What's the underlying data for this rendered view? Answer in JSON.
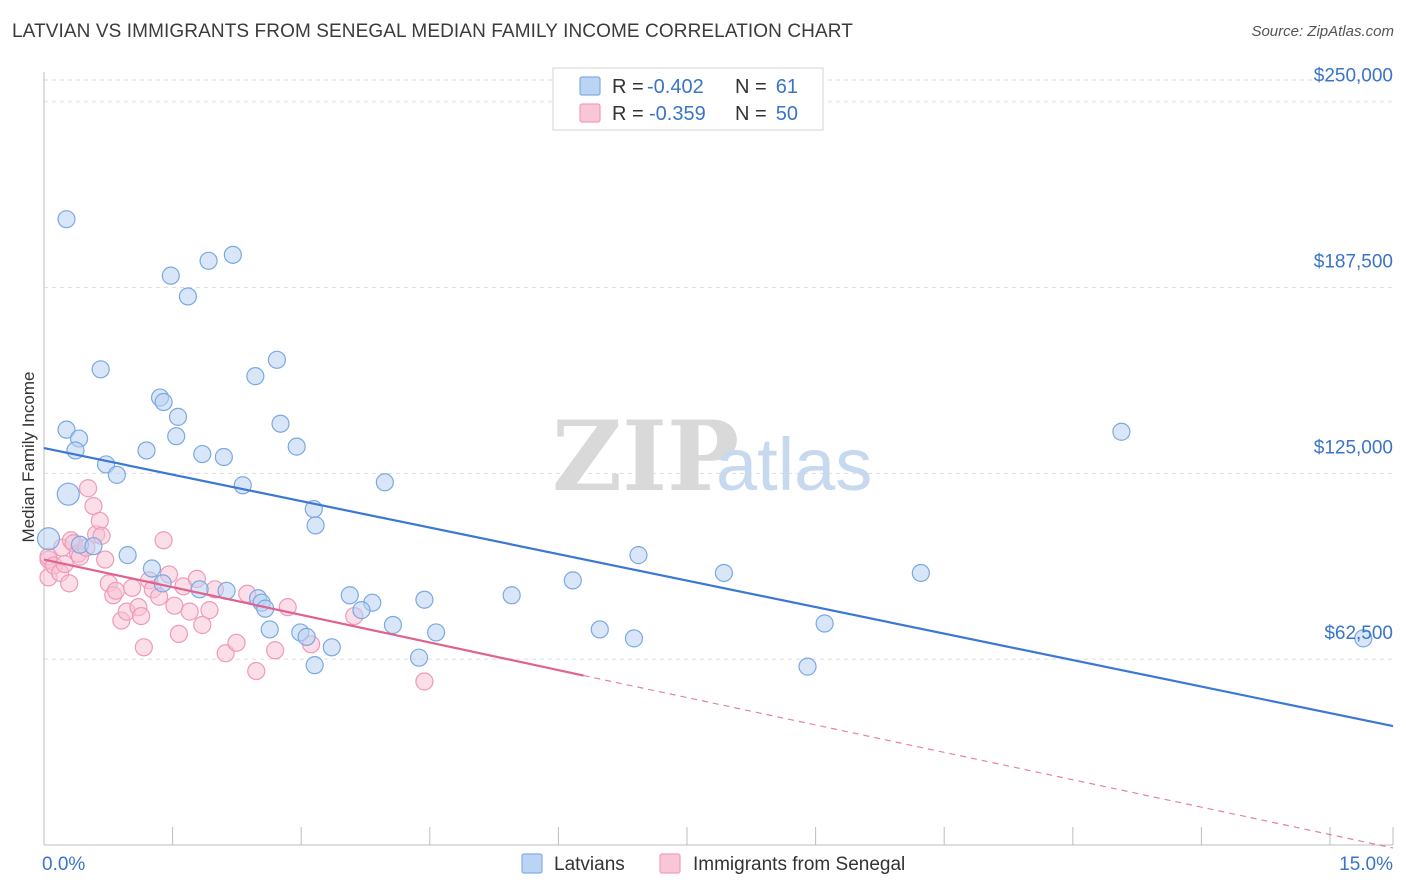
{
  "header": {
    "title": "LATVIAN VS IMMIGRANTS FROM SENEGAL MEDIAN FAMILY INCOME CORRELATION CHART",
    "source": "Source: ZipAtlas.com"
  },
  "watermark": {
    "zip": "ZIP",
    "atlas": "atlas"
  },
  "stats": [
    {
      "r_label": "R =",
      "r_value": "-0.402",
      "n_label": "N =",
      "n_value": "61",
      "color": "#7eaee5",
      "fill": "#bcd4f3"
    },
    {
      "r_label": "R =",
      "r_value": "-0.359",
      "n_label": "N =",
      "n_value": "50",
      "color": "#ef9fbc",
      "fill": "#f8c6d7"
    }
  ],
  "legend": {
    "series1": "Latvians",
    "series2": "Immigrants from Senegal"
  },
  "chart_data": {
    "type": "scatter",
    "title": "LATVIAN VS IMMIGRANTS FROM SENEGAL MEDIAN FAMILY INCOME CORRELATION CHART",
    "xlabel": "",
    "ylabel": "Median Family Income",
    "xlim": [
      0,
      15
    ],
    "ylim": [
      0,
      260000
    ],
    "x_tick_labels": [
      "0.0%",
      "15.0%"
    ],
    "y_ticks": [
      62500,
      125000,
      187500,
      250000
    ],
    "y_tick_labels": [
      "$62,500",
      "$125,000",
      "$187,500",
      "$250,000"
    ],
    "grid": true,
    "series": [
      {
        "name": "Latvians",
        "color": "#3a78d4",
        "fill": "#b9d2f2",
        "trend": {
          "x": [
            0,
            15
          ],
          "y": [
            133500,
            40000
          ]
        },
        "points": [
          [
            0.25,
            210500
          ],
          [
            0.27,
            118000
          ],
          [
            0.63,
            160000
          ],
          [
            0.25,
            139700
          ],
          [
            0.39,
            136700
          ],
          [
            0.35,
            132700
          ],
          [
            1.41,
            191500
          ],
          [
            2.1,
            198500
          ],
          [
            1.83,
            196500
          ],
          [
            1.6,
            184500
          ],
          [
            1.29,
            150500
          ],
          [
            1.33,
            149000
          ],
          [
            1.49,
            144000
          ],
          [
            1.47,
            137500
          ],
          [
            1.14,
            132700
          ],
          [
            1.76,
            131500
          ],
          [
            2.0,
            130500
          ],
          [
            2.21,
            121000
          ],
          [
            2.59,
            163200
          ],
          [
            2.35,
            157700
          ],
          [
            2.63,
            141700
          ],
          [
            2.81,
            134000
          ],
          [
            0.69,
            128000
          ],
          [
            0.81,
            124500
          ],
          [
            3.0,
            113000
          ],
          [
            3.79,
            122000
          ],
          [
            3.02,
            107500
          ],
          [
            0.05,
            103000
          ],
          [
            0.4,
            101000
          ],
          [
            0.55,
            100500
          ],
          [
            0.93,
            97500
          ],
          [
            1.2,
            93000
          ],
          [
            1.32,
            88000
          ],
          [
            1.73,
            86000
          ],
          [
            2.03,
            85500
          ],
          [
            2.38,
            83000
          ],
          [
            2.42,
            81500
          ],
          [
            3.4,
            84000
          ],
          [
            3.65,
            81500
          ],
          [
            3.88,
            74000
          ],
          [
            4.23,
            82500
          ],
          [
            4.36,
            71500
          ],
          [
            3.2,
            66500
          ],
          [
            3.53,
            79000
          ],
          [
            2.46,
            79500
          ],
          [
            2.51,
            72500
          ],
          [
            2.85,
            71500
          ],
          [
            2.92,
            70000
          ],
          [
            3.01,
            60500
          ],
          [
            4.17,
            63000
          ],
          [
            5.2,
            84000
          ],
          [
            5.88,
            89000
          ],
          [
            6.18,
            72500
          ],
          [
            6.56,
            69500
          ],
          [
            6.61,
            97500
          ],
          [
            7.56,
            91500
          ],
          [
            9.75,
            91500
          ],
          [
            8.49,
            60000
          ],
          [
            8.68,
            74500
          ],
          [
            11.98,
            139000
          ],
          [
            14.67,
            69500
          ]
        ]
      },
      {
        "name": "Immigrants from Senegal",
        "color": "#e0628e",
        "fill": "#f7c3d5",
        "trend": {
          "x": [
            0,
            6
          ],
          "y": [
            96000,
            57000
          ]
        },
        "trend_dashed": {
          "x": [
            6,
            15
          ],
          "y": [
            57000,
            -1000
          ]
        },
        "points": [
          [
            0.05,
            96000
          ],
          [
            0.05,
            90000
          ],
          [
            0.05,
            97000
          ],
          [
            0.11,
            94000
          ],
          [
            0.18,
            91500
          ],
          [
            0.2,
            100000
          ],
          [
            0.23,
            94500
          ],
          [
            0.28,
            88000
          ],
          [
            0.3,
            102500
          ],
          [
            0.33,
            101500
          ],
          [
            0.38,
            98000
          ],
          [
            0.4,
            97000
          ],
          [
            0.47,
            100000
          ],
          [
            0.49,
            120000
          ],
          [
            0.55,
            114000
          ],
          [
            0.58,
            104500
          ],
          [
            0.62,
            109000
          ],
          [
            0.64,
            104000
          ],
          [
            0.68,
            96000
          ],
          [
            0.72,
            88000
          ],
          [
            0.77,
            84000
          ],
          [
            0.8,
            85500
          ],
          [
            0.86,
            75500
          ],
          [
            0.92,
            78500
          ],
          [
            0.98,
            86500
          ],
          [
            1.05,
            80000
          ],
          [
            1.08,
            77000
          ],
          [
            1.11,
            66500
          ],
          [
            1.17,
            89000
          ],
          [
            1.21,
            86000
          ],
          [
            1.28,
            83500
          ],
          [
            1.33,
            102500
          ],
          [
            1.39,
            91000
          ],
          [
            1.45,
            80500
          ],
          [
            1.5,
            71000
          ],
          [
            1.55,
            87000
          ],
          [
            1.62,
            78500
          ],
          [
            1.7,
            89500
          ],
          [
            1.76,
            74000
          ],
          [
            1.84,
            79000
          ],
          [
            1.9,
            86000
          ],
          [
            2.02,
            64500
          ],
          [
            2.14,
            68000
          ],
          [
            2.26,
            84500
          ],
          [
            2.36,
            58500
          ],
          [
            2.57,
            65500
          ],
          [
            2.71,
            80000
          ],
          [
            2.97,
            67500
          ],
          [
            3.45,
            77000
          ],
          [
            4.23,
            55000
          ]
        ]
      }
    ]
  }
}
